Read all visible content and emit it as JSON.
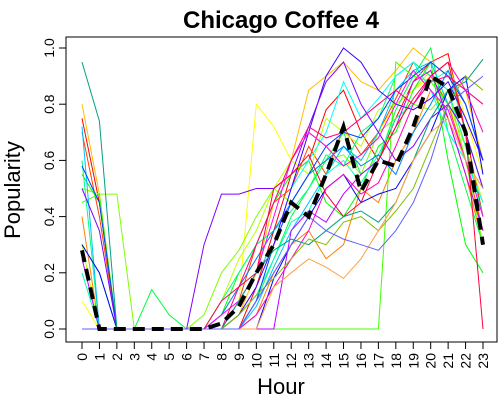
{
  "chart_data": {
    "type": "line",
    "title": "Chicago Coffee 4",
    "xlabel": "Hour",
    "ylabel": "Popularity",
    "x": [
      0,
      1,
      2,
      3,
      4,
      5,
      6,
      7,
      8,
      9,
      10,
      11,
      12,
      13,
      14,
      15,
      16,
      17,
      18,
      19,
      20,
      21,
      22,
      23
    ],
    "xlim": [
      0,
      23
    ],
    "ylim": [
      0,
      1
    ],
    "y_ticks": [
      0.0,
      0.2,
      0.4,
      0.6,
      0.8,
      1.0
    ],
    "y_tick_labels": [
      "0.0",
      "0.2",
      "0.4",
      "0.6",
      "0.8",
      "1.0"
    ],
    "x_tick_labels": [
      "0",
      "1",
      "2",
      "3",
      "4",
      "5",
      "6",
      "7",
      "8",
      "9",
      "10",
      "11",
      "12",
      "13",
      "14",
      "15",
      "16",
      "17",
      "18",
      "19",
      "20",
      "21",
      "22",
      "23"
    ],
    "grid": false,
    "legend": "none",
    "mean_series": {
      "color": "#000000",
      "style": "dashed",
      "values": [
        0.28,
        0.0,
        0.0,
        0.0,
        0.0,
        0.0,
        0.0,
        0.0,
        0.02,
        0.08,
        0.2,
        0.3,
        0.45,
        0.4,
        0.55,
        0.72,
        0.49,
        0.6,
        0.58,
        0.72,
        0.9,
        0.86,
        0.7,
        0.3
      ]
    },
    "series": [
      {
        "color": "#ff0000",
        "values": [
          0.75,
          0.45,
          0.0,
          0.0,
          0.0,
          0.0,
          0.0,
          0.0,
          0.0,
          0.0,
          0.15,
          0.35,
          0.55,
          0.6,
          0.78,
          0.85,
          0.7,
          0.6,
          0.75,
          0.88,
          0.95,
          0.98,
          0.7,
          0.4
        ]
      },
      {
        "color": "#ff4000",
        "values": [
          0.7,
          0.4,
          0.0,
          0.0,
          0.0,
          0.0,
          0.0,
          0.0,
          0.0,
          0.1,
          0.3,
          0.45,
          0.5,
          0.65,
          0.55,
          0.72,
          0.62,
          0.7,
          0.82,
          0.95,
          0.9,
          0.8,
          0.6,
          0.35
        ]
      },
      {
        "color": "#ff8000",
        "values": [
          0.4,
          0.0,
          0.0,
          0.0,
          0.0,
          0.0,
          0.0,
          0.0,
          0.0,
          0.0,
          0.05,
          0.2,
          0.3,
          0.35,
          0.25,
          0.3,
          0.5,
          0.45,
          0.6,
          0.7,
          0.85,
          0.75,
          0.55,
          0.3
        ]
      },
      {
        "color": "#ffbf00",
        "values": [
          0.8,
          0.48,
          0.0,
          0.0,
          0.0,
          0.0,
          0.0,
          0.0,
          0.0,
          0.05,
          0.2,
          0.45,
          0.6,
          0.85,
          0.9,
          0.95,
          0.88,
          0.85,
          0.92,
          1.0,
          0.95,
          0.9,
          0.85,
          0.6
        ]
      },
      {
        "color": "#ffff00",
        "values": [
          0.1,
          0.0,
          0.0,
          0.0,
          0.0,
          0.0,
          0.0,
          0.0,
          0.0,
          0.1,
          0.8,
          0.72,
          0.6,
          0.7,
          0.65,
          0.58,
          0.6,
          0.7,
          0.8,
          0.85,
          0.9,
          0.95,
          0.75,
          0.55
        ]
      },
      {
        "color": "#bfff00",
        "values": [
          0.3,
          0.0,
          0.0,
          0.0,
          0.0,
          0.0,
          0.0,
          0.0,
          0.1,
          0.25,
          0.35,
          0.5,
          0.6,
          0.55,
          0.75,
          0.7,
          0.65,
          0.78,
          0.8,
          0.85,
          0.92,
          0.8,
          0.65,
          0.45
        ]
      },
      {
        "color": "#80ff00",
        "values": [
          0.5,
          0.48,
          0.48,
          0.0,
          0.0,
          0.0,
          0.0,
          0.05,
          0.2,
          0.28,
          0.4,
          0.5,
          0.45,
          0.55,
          0.6,
          0.62,
          0.55,
          0.7,
          0.75,
          0.8,
          0.78,
          0.85,
          0.6,
          0.3
        ]
      },
      {
        "color": "#40ff00",
        "values": [
          0.45,
          0.48,
          0.0,
          0.0,
          0.0,
          0.0,
          0.0,
          0.0,
          0.0,
          0.0,
          0.0,
          0.0,
          0.0,
          0.0,
          0.0,
          0.0,
          0.0,
          0.0,
          0.95,
          0.9,
          0.88,
          0.8,
          0.7,
          0.5
        ]
      },
      {
        "color": "#00ff00",
        "values": [
          0.55,
          0.45,
          0.0,
          0.0,
          0.0,
          0.0,
          0.0,
          0.0,
          0.05,
          0.2,
          0.3,
          0.45,
          0.55,
          0.6,
          0.45,
          0.4,
          0.5,
          0.65,
          0.7,
          0.85,
          0.95,
          0.6,
          0.3,
          0.2
        ]
      },
      {
        "color": "#00ff40",
        "values": [
          0.3,
          0.2,
          0.0,
          0.0,
          0.14,
          0.05,
          0.0,
          0.0,
          0.0,
          0.0,
          0.1,
          0.25,
          0.4,
          0.5,
          0.6,
          0.7,
          0.55,
          0.6,
          0.78,
          0.9,
          1.0,
          0.7,
          0.5,
          0.3
        ]
      },
      {
        "color": "#00ff80",
        "values": [
          0.6,
          0.0,
          0.0,
          0.0,
          0.0,
          0.0,
          0.0,
          0.0,
          0.1,
          0.2,
          0.3,
          0.35,
          0.42,
          0.5,
          0.62,
          0.58,
          0.7,
          0.75,
          0.9,
          0.95,
          0.9,
          0.85,
          0.65,
          0.4
        ]
      },
      {
        "color": "#00ffbf",
        "values": [
          0.2,
          0.0,
          0.0,
          0.0,
          0.0,
          0.0,
          0.0,
          0.0,
          0.0,
          0.05,
          0.12,
          0.25,
          0.38,
          0.42,
          0.55,
          0.6,
          0.52,
          0.62,
          0.75,
          0.8,
          0.88,
          0.92,
          0.7,
          0.5
        ]
      },
      {
        "color": "#00ffff",
        "values": [
          0.0,
          0.0,
          0.0,
          0.0,
          0.0,
          0.0,
          0.0,
          0.0,
          0.0,
          0.1,
          0.2,
          0.3,
          0.5,
          0.6,
          0.7,
          0.88,
          0.75,
          0.82,
          0.9,
          0.95,
          0.85,
          0.7,
          0.6,
          0.45
        ]
      },
      {
        "color": "#00bfff",
        "values": [
          0.72,
          0.0,
          0.0,
          0.0,
          0.0,
          0.0,
          0.0,
          0.0,
          0.0,
          0.0,
          0.08,
          0.22,
          0.35,
          0.45,
          0.55,
          0.65,
          0.6,
          0.7,
          0.85,
          0.92,
          0.95,
          0.8,
          0.7,
          0.5
        ]
      },
      {
        "color": "#0080ff",
        "values": [
          0.0,
          0.0,
          0.0,
          0.0,
          0.0,
          0.0,
          0.0,
          0.0,
          0.05,
          0.15,
          0.25,
          0.35,
          0.45,
          0.55,
          0.6,
          0.65,
          0.58,
          0.62,
          0.55,
          0.7,
          0.8,
          0.92,
          0.8,
          0.6
        ]
      },
      {
        "color": "#0040ff",
        "values": [
          0.58,
          0.45,
          0.0,
          0.0,
          0.0,
          0.0,
          0.0,
          0.0,
          0.0,
          0.0,
          0.1,
          0.3,
          0.45,
          0.55,
          0.65,
          0.7,
          0.68,
          0.75,
          0.85,
          0.9,
          0.95,
          0.9,
          0.8,
          0.6
        ]
      },
      {
        "color": "#0000ff",
        "values": [
          0.3,
          0.2,
          0.0,
          0.0,
          0.0,
          0.0,
          0.0,
          0.0,
          0.0,
          0.0,
          0.0,
          0.18,
          0.3,
          0.4,
          0.5,
          0.55,
          0.45,
          0.48,
          0.5,
          0.6,
          0.7,
          0.85,
          0.9,
          0.55
        ]
      },
      {
        "color": "#4000ff",
        "values": [
          0.0,
          0.0,
          0.0,
          0.0,
          0.0,
          0.0,
          0.0,
          0.0,
          0.0,
          0.05,
          0.15,
          0.3,
          0.5,
          0.7,
          0.9,
          1.0,
          0.95,
          0.85,
          0.8,
          0.78,
          0.82,
          0.88,
          0.75,
          0.6
        ]
      },
      {
        "color": "#8000ff",
        "values": [
          0.5,
          0.35,
          0.0,
          0.0,
          0.0,
          0.0,
          0.0,
          0.3,
          0.48,
          0.48,
          0.5,
          0.5,
          0.55,
          0.72,
          0.88,
          0.95,
          0.8,
          0.7,
          0.6,
          0.65,
          0.75,
          0.8,
          0.7,
          0.5
        ]
      },
      {
        "color": "#bf00ff",
        "values": [
          0.25,
          0.0,
          0.0,
          0.0,
          0.0,
          0.0,
          0.0,
          0.0,
          0.0,
          0.0,
          0.0,
          0.0,
          0.35,
          0.42,
          0.38,
          0.48,
          0.55,
          0.6,
          0.72,
          0.88,
          0.92,
          0.75,
          0.55,
          0.35
        ]
      },
      {
        "color": "#ff00ff",
        "values": [
          0.0,
          0.0,
          0.0,
          0.0,
          0.0,
          0.0,
          0.0,
          0.0,
          0.05,
          0.1,
          0.2,
          0.4,
          0.6,
          0.7,
          0.65,
          0.58,
          0.62,
          0.68,
          0.8,
          0.92,
          0.85,
          0.78,
          0.6,
          0.4
        ]
      },
      {
        "color": "#ff00bf",
        "values": [
          0.0,
          0.0,
          0.0,
          0.0,
          0.0,
          0.0,
          0.0,
          0.0,
          0.0,
          0.0,
          0.05,
          0.15,
          0.25,
          0.35,
          0.5,
          0.55,
          0.48,
          0.52,
          0.65,
          0.8,
          0.9,
          0.95,
          0.85,
          0.7
        ]
      },
      {
        "color": "#ff0080",
        "values": [
          0.0,
          0.0,
          0.0,
          0.0,
          0.0,
          0.0,
          0.0,
          0.0,
          0.0,
          0.15,
          0.3,
          0.45,
          0.6,
          0.72,
          0.68,
          0.7,
          0.75,
          0.8,
          0.85,
          0.8,
          0.88,
          0.9,
          0.85,
          0.8
        ]
      },
      {
        "color": "#ff0040",
        "values": [
          0.0,
          0.0,
          0.0,
          0.0,
          0.0,
          0.0,
          0.0,
          0.0,
          0.1,
          0.15,
          0.2,
          0.5,
          0.55,
          0.62,
          0.48,
          0.4,
          0.45,
          0.6,
          0.72,
          0.82,
          0.9,
          0.95,
          0.7,
          0.0
        ]
      },
      {
        "color": "#00a080",
        "values": [
          0.95,
          0.74,
          0.0,
          0.0,
          0.0,
          0.0,
          0.0,
          0.0,
          0.0,
          0.1,
          0.2,
          0.28,
          0.32,
          0.3,
          0.35,
          0.4,
          0.42,
          0.38,
          0.45,
          0.6,
          0.75,
          0.85,
          0.88,
          0.96
        ]
      },
      {
        "color": "#80c000",
        "values": [
          0.0,
          0.0,
          0.0,
          0.0,
          0.0,
          0.0,
          0.0,
          0.0,
          0.0,
          0.05,
          0.12,
          0.18,
          0.25,
          0.32,
          0.3,
          0.38,
          0.4,
          0.35,
          0.42,
          0.5,
          0.65,
          0.8,
          0.9,
          0.85
        ]
      },
      {
        "color": "#ffa040",
        "values": [
          0.0,
          0.0,
          0.0,
          0.0,
          0.0,
          0.0,
          0.0,
          0.0,
          0.0,
          0.0,
          0.0,
          0.15,
          0.2,
          0.25,
          0.22,
          0.18,
          0.25,
          0.35,
          0.45,
          0.6,
          0.7,
          0.75,
          0.6,
          0.5
        ]
      },
      {
        "color": "#6060ff",
        "values": [
          0.0,
          0.0,
          0.0,
          0.0,
          0.0,
          0.0,
          0.0,
          0.0,
          0.0,
          0.0,
          0.1,
          0.2,
          0.3,
          0.4,
          0.35,
          0.32,
          0.3,
          0.28,
          0.35,
          0.45,
          0.6,
          0.8,
          0.85,
          0.9
        ]
      }
    ]
  }
}
